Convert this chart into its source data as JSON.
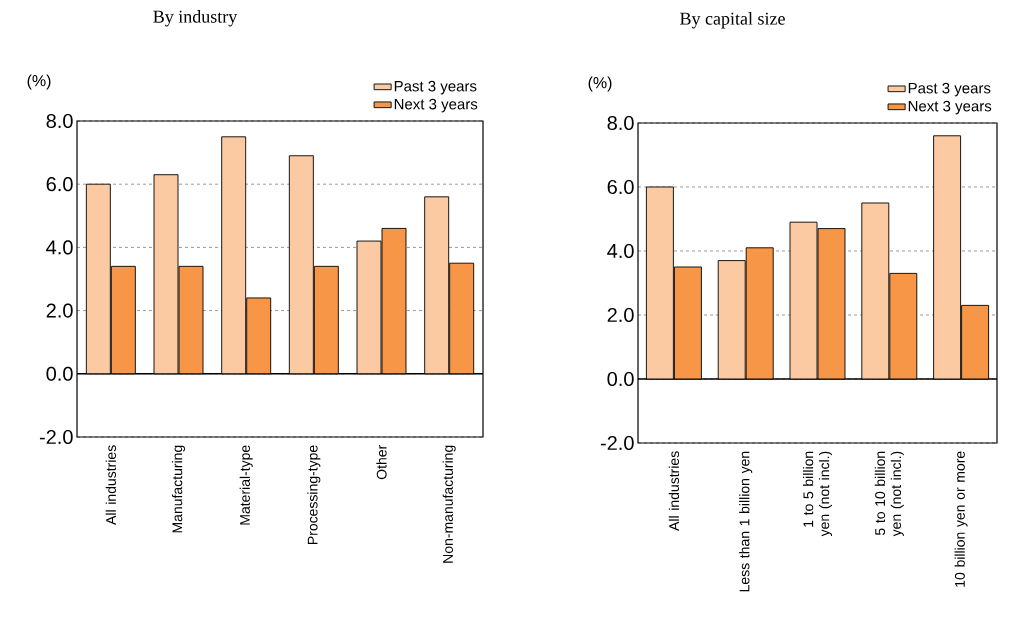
{
  "chart_data": [
    {
      "type": "bar",
      "title": "By industry",
      "ylabel": "(%)",
      "categories": [
        "All industries",
        "Manufacturing",
        "Material-type",
        "Processing-type",
        "Other",
        "Non-manufacturing"
      ],
      "series": [
        {
          "name": "Past 3 years",
          "color": "#fbcaa3",
          "values": [
            6.0,
            6.3,
            7.5,
            6.9,
            4.2,
            5.6
          ]
        },
        {
          "name": "Next 3 years",
          "color": "#f79646",
          "values": [
            3.4,
            3.4,
            2.4,
            3.4,
            4.6,
            3.5
          ]
        }
      ],
      "ylim": [
        -2,
        8
      ],
      "yticks": [
        {
          "value": -2,
          "label": "-2.0"
        },
        {
          "value": 0,
          "label": "0.0"
        },
        {
          "value": 2,
          "label": "2.0"
        },
        {
          "value": 4,
          "label": "4.0"
        },
        {
          "value": 6,
          "label": "6.0"
        },
        {
          "value": 8,
          "label": "8.0"
        }
      ],
      "grid": "y",
      "legend": "top right"
    },
    {
      "type": "bar",
      "title": "By capital size",
      "ylabel": "(%)",
      "categories": [
        "All industries",
        "Less than 1 billion yen",
        "1 to 5 billion yen (not incl.)",
        "5 to 10 billion yen (not incl.)",
        "10 billion yen or more"
      ],
      "series": [
        {
          "name": "Past 3 years",
          "color": "#fbcaa3",
          "values": [
            6.0,
            3.7,
            4.9,
            5.5,
            7.6
          ]
        },
        {
          "name": "Next 3 years",
          "color": "#f79646",
          "values": [
            3.5,
            4.1,
            4.7,
            3.3,
            2.3
          ]
        }
      ],
      "ylim": [
        -2,
        8
      ],
      "yticks": [
        {
          "value": -2,
          "label": "-2.0"
        },
        {
          "value": 0,
          "label": "0.0"
        },
        {
          "value": 2,
          "label": "2.0"
        },
        {
          "value": 4,
          "label": "4.0"
        },
        {
          "value": 6,
          "label": "6.0"
        },
        {
          "value": 8,
          "label": "8.0"
        }
      ],
      "grid": "y",
      "legend": "top right"
    }
  ]
}
